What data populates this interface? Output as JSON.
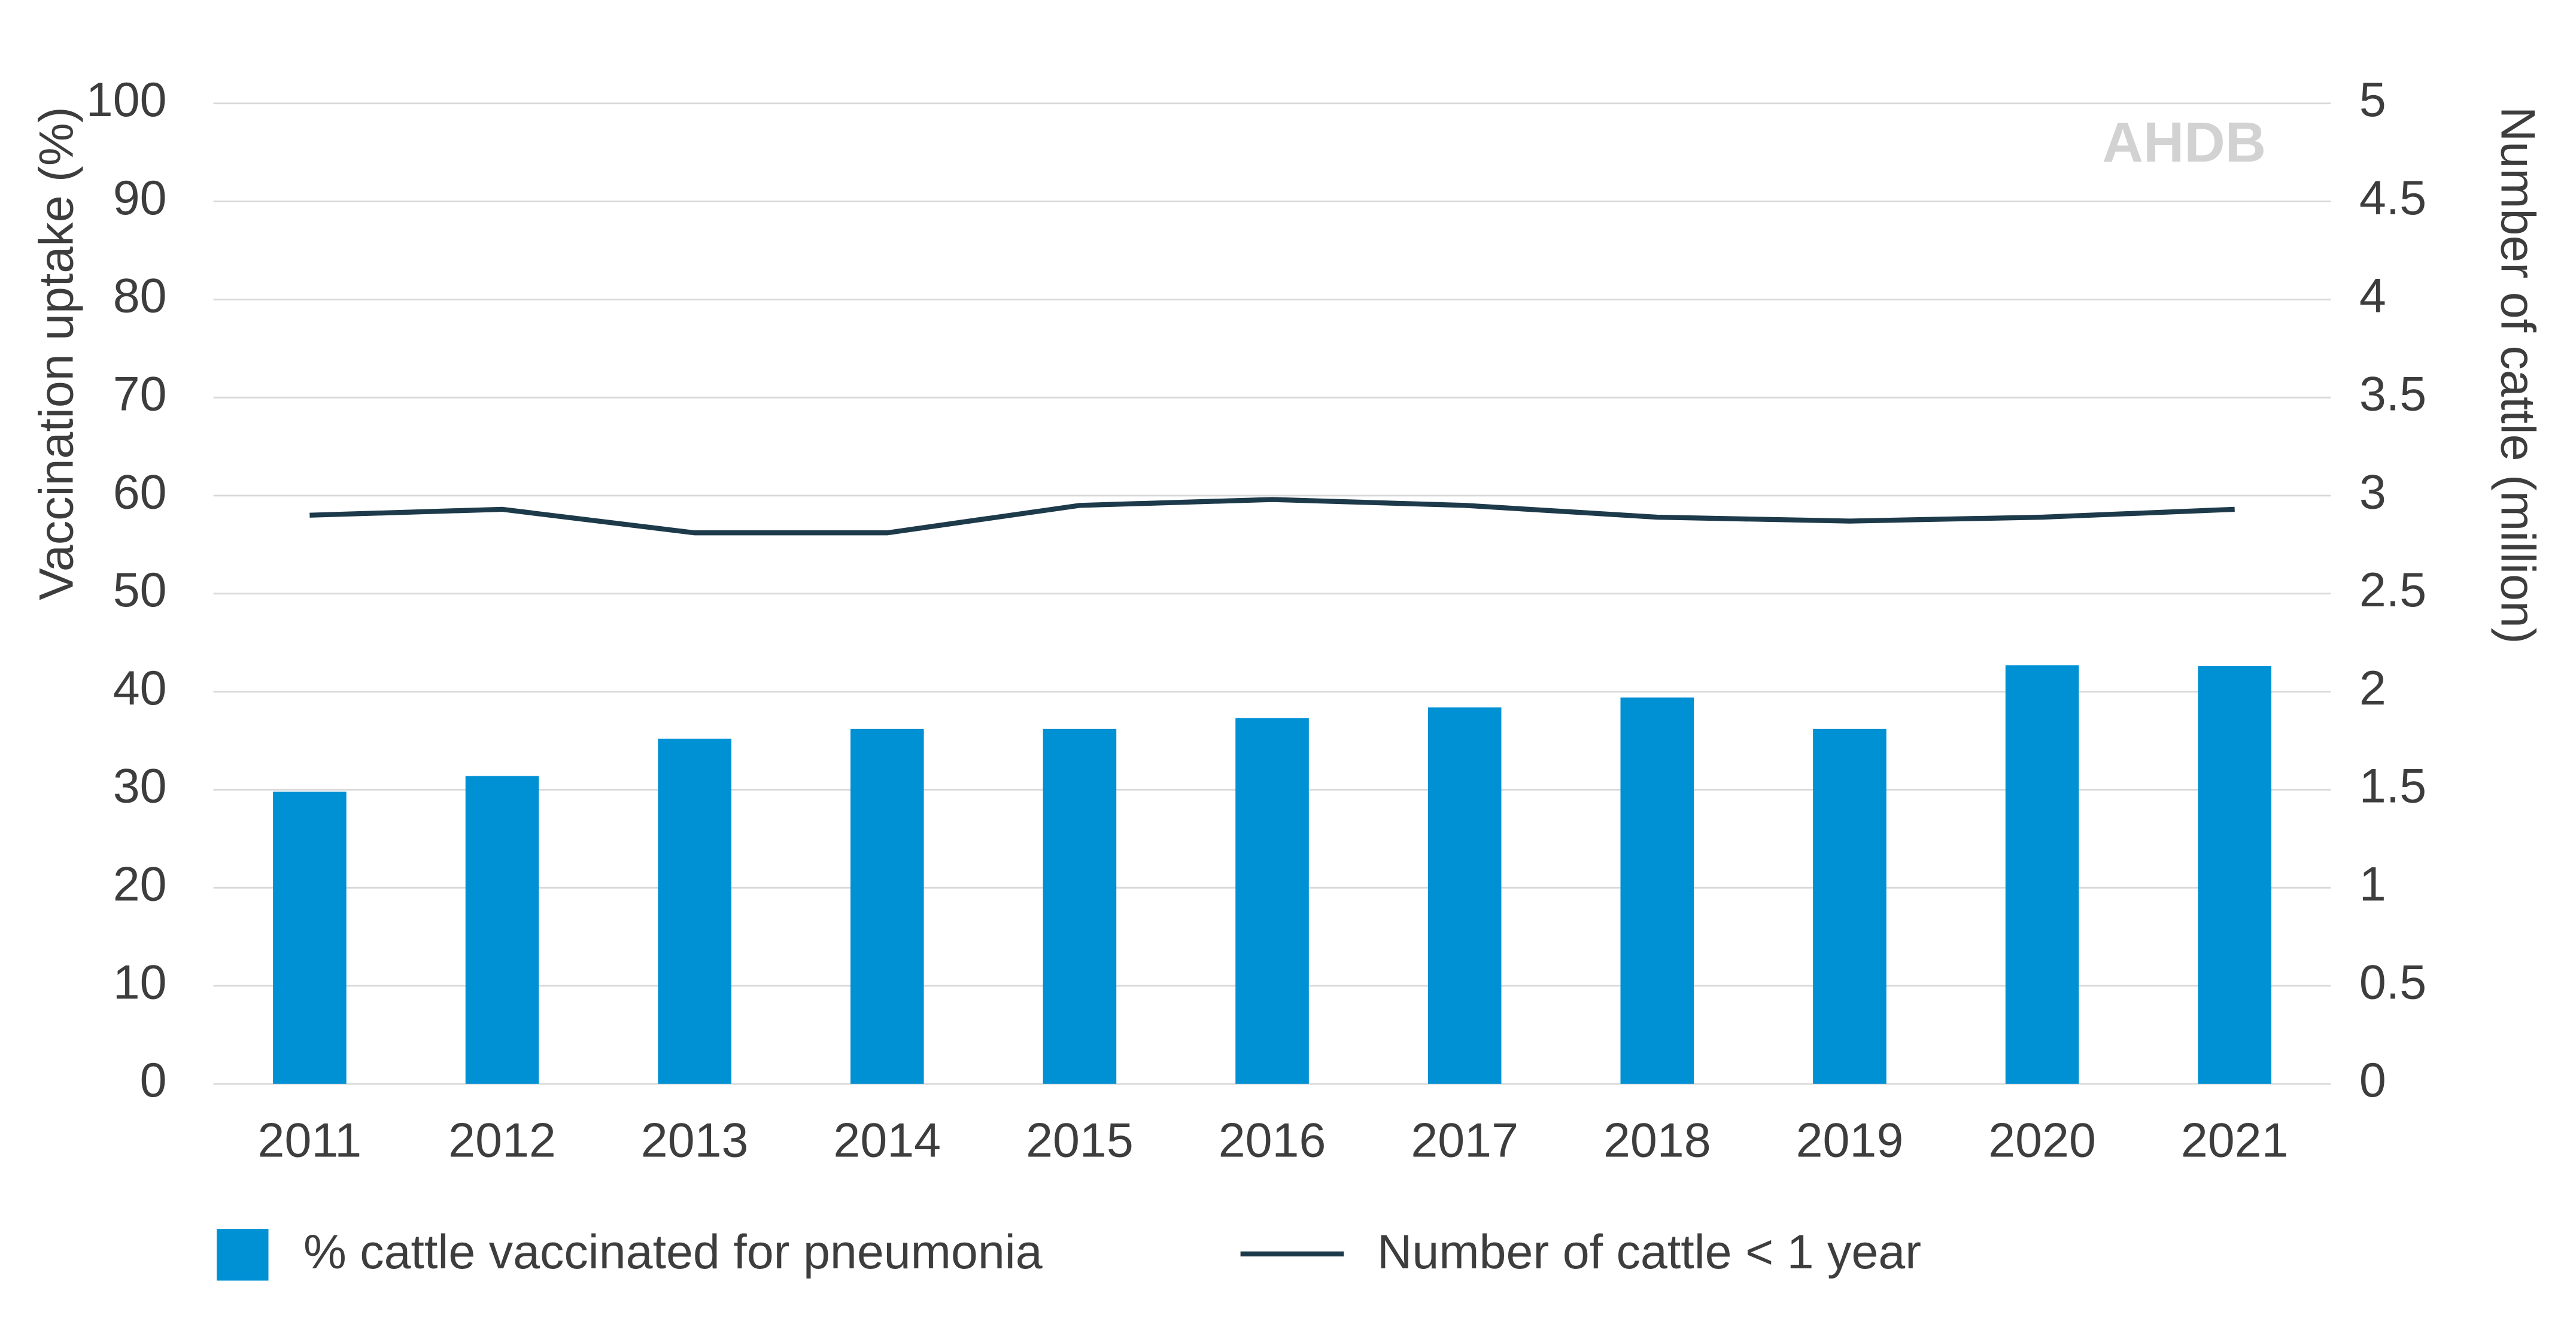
{
  "chart_data": {
    "type": "bar",
    "categories": [
      "2011",
      "2012",
      "2013",
      "2014",
      "2015",
      "2016",
      "2017",
      "2018",
      "2019",
      "2020",
      "2021"
    ],
    "series": [
      {
        "name": "% cattle vaccinated for pneumonia",
        "color": "#0090d4",
        "type": "bar",
        "values": [
          29.8,
          31.4,
          35.2,
          36.2,
          36.2,
          37.3,
          38.4,
          39.4,
          36.2,
          42.7,
          42.6
        ]
      },
      {
        "name": "Number of cattle < 1 year",
        "color": "#1d3a4a",
        "type": "line",
        "axis": "y2",
        "values": [
          2.9,
          2.93,
          2.81,
          2.81,
          2.95,
          2.98,
          2.95,
          2.89,
          2.87,
          2.89,
          2.93
        ]
      }
    ],
    "ylabel": "Vaccination uptake (%)",
    "y2label": "Number of cattle (million)",
    "ylim": [
      0,
      100
    ],
    "yticks": [
      0,
      10,
      20,
      30,
      40,
      50,
      60,
      70,
      80,
      90,
      100
    ],
    "y2lim": [
      0,
      5
    ],
    "y2ticks": [
      0,
      0.5,
      1,
      1.5,
      2,
      2.5,
      3,
      3.5,
      4,
      4.5,
      5
    ],
    "grid": true,
    "legend": "bottom",
    "watermark": "AHDB"
  }
}
